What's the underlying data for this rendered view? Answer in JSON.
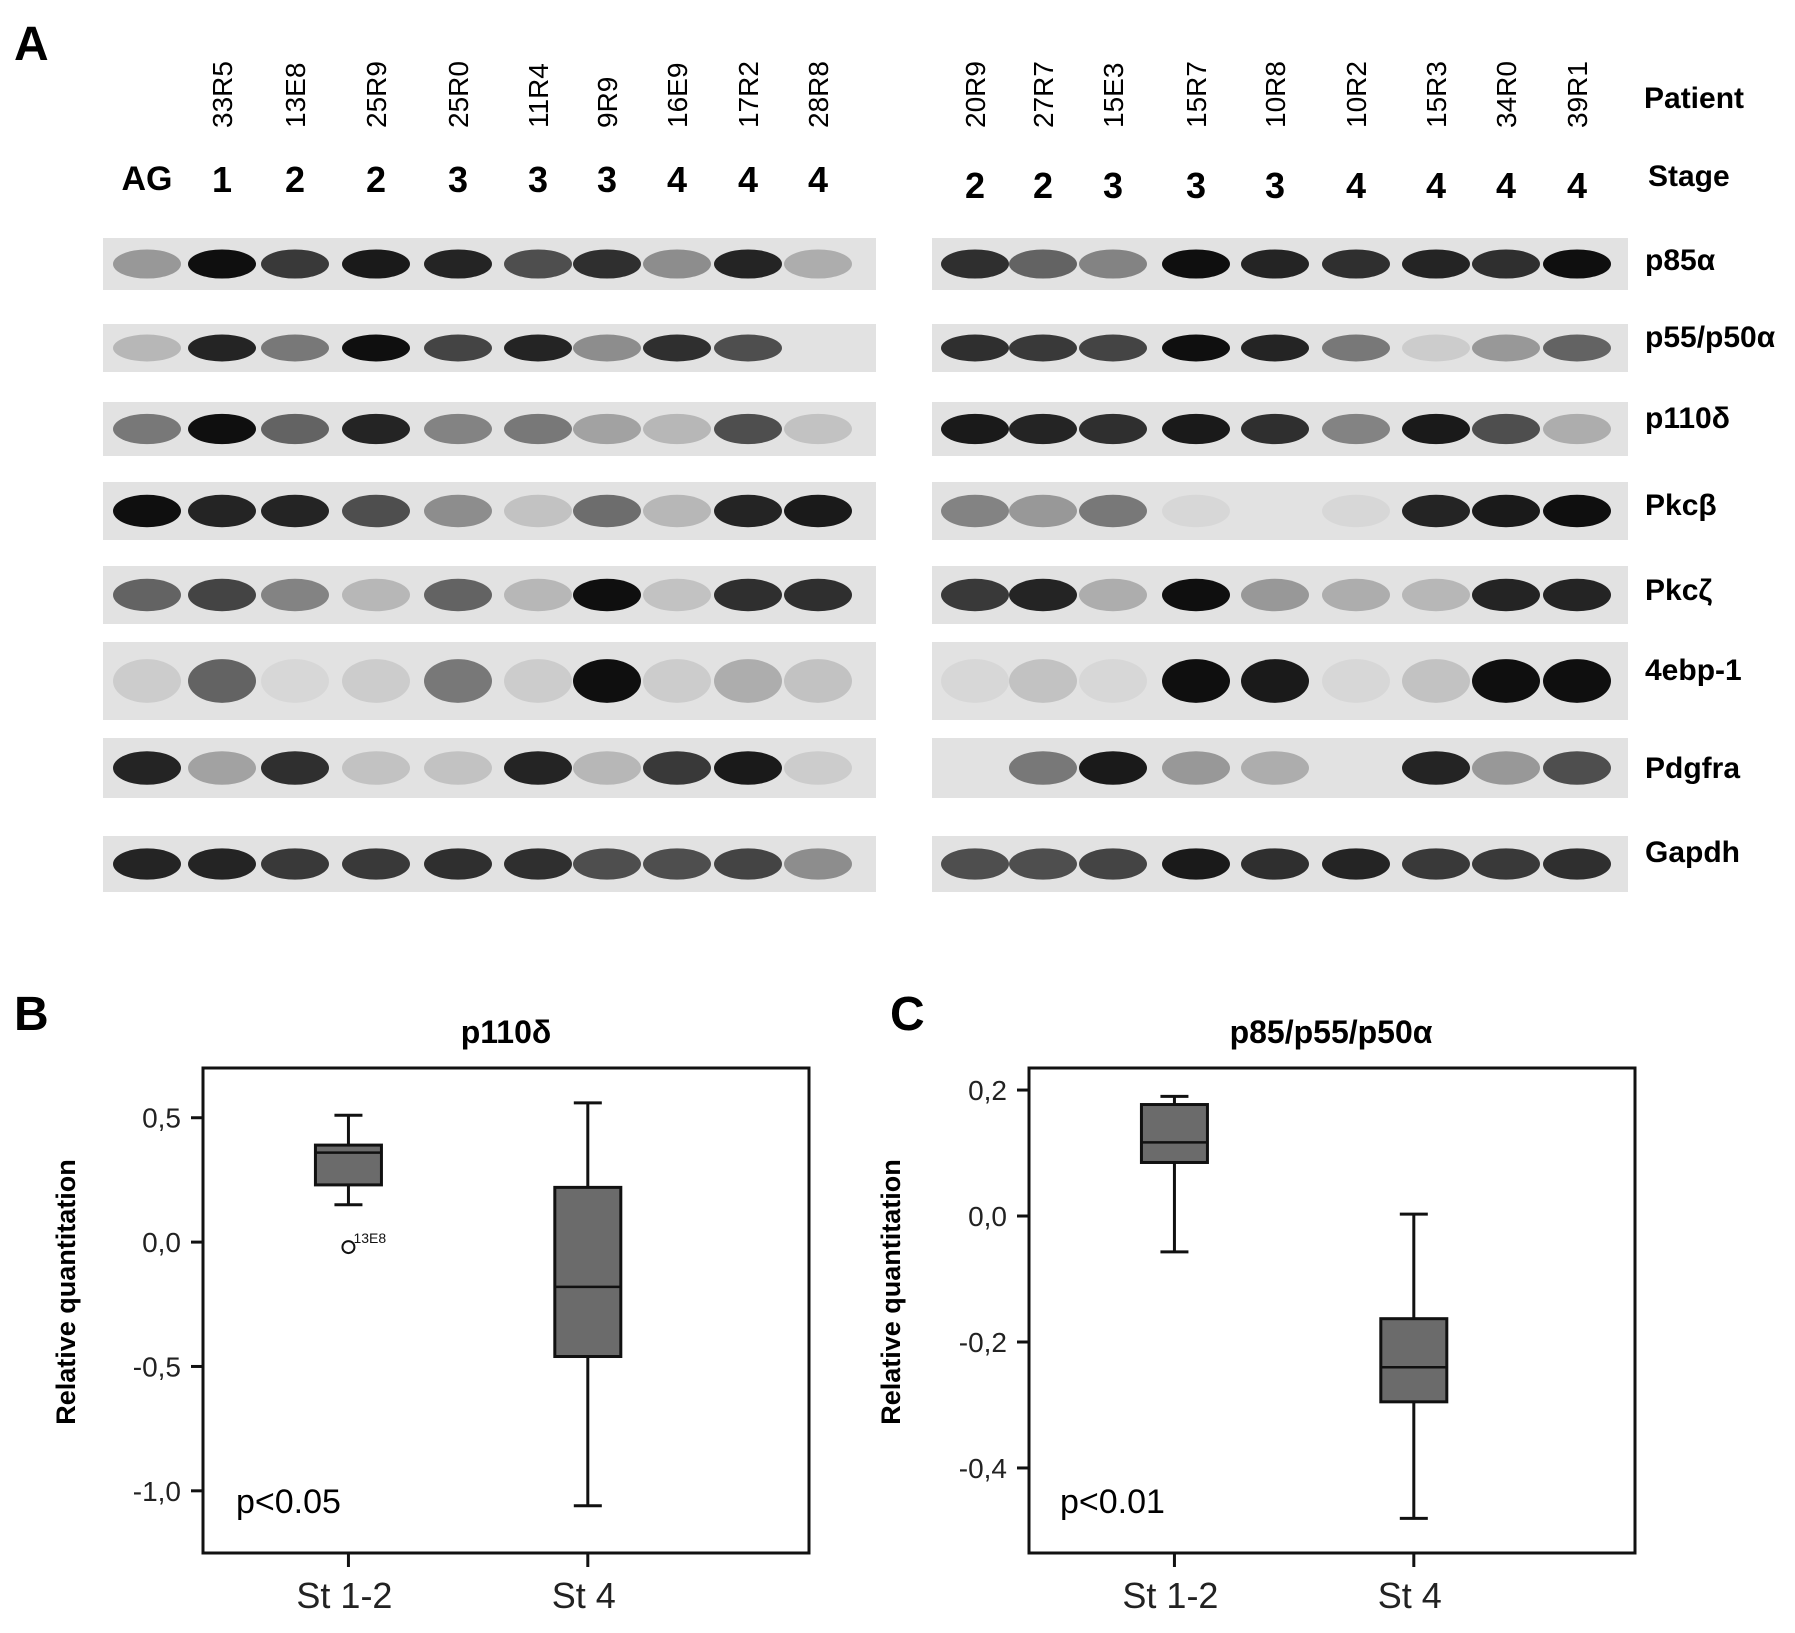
{
  "panels": {
    "a": {
      "letter": "A"
    },
    "b": {
      "letter": "B"
    },
    "c": {
      "letter": "C"
    }
  },
  "blot": {
    "row_headers": {
      "patient": "Patient",
      "stage": "Stage"
    },
    "left": {
      "control_label": "AG",
      "patients": [
        "33R5",
        "13E8",
        "25R9",
        "25R0",
        "11R4",
        "9R9",
        "16E9",
        "17R2",
        "28R8"
      ],
      "stages": [
        "1",
        "2",
        "2",
        "3",
        "3",
        "3",
        "4",
        "4",
        "4"
      ]
    },
    "right": {
      "patients": [
        "20R9",
        "27R7",
        "15E3",
        "15R7",
        "10R8",
        "10R2",
        "15R3",
        "34R0",
        "39R1"
      ],
      "stages": [
        "2",
        "2",
        "3",
        "3",
        "3",
        "4",
        "4",
        "4",
        "4"
      ]
    },
    "proteins": [
      "p85α",
      "p55/p50α",
      "p110δ",
      "Pkcβ",
      "Pkcζ",
      "4ebp-1",
      "Pdgfra",
      "Gapdh"
    ],
    "band_color": "#111111",
    "background_color": "#e2e2e2"
  },
  "chart_data": [
    {
      "type": "box",
      "panel": "B",
      "title": "p110δ",
      "xlabel": "",
      "ylabel": "Relative quantitation",
      "categories": [
        "St 1-2",
        "St 4"
      ],
      "yticks": [
        0.5,
        0.0,
        -0.5,
        -1.0
      ],
      "ytick_labels": [
        "0,5",
        "0,0",
        "-0,5",
        "-1,0"
      ],
      "ylim": [
        -1.25,
        0.7
      ],
      "boxes": [
        {
          "min": 0.15,
          "q1": 0.23,
          "median": 0.36,
          "q3": 0.39,
          "max": 0.51
        },
        {
          "min": -1.06,
          "q1": -0.46,
          "median": -0.18,
          "q3": 0.22,
          "max": 0.56
        }
      ],
      "outliers": [
        {
          "category_index": 0,
          "value": -0.02,
          "label": "13E8"
        }
      ],
      "annotation": "p<0.05",
      "box_color": "#6b6b6b"
    },
    {
      "type": "box",
      "panel": "C",
      "title": "p85/p55/p50α",
      "xlabel": "",
      "ylabel": "Relative quantitation",
      "categories": [
        "St 1-2",
        "St 4"
      ],
      "yticks": [
        0.2,
        0.0,
        -0.2,
        -0.4
      ],
      "ytick_labels": [
        "0,2",
        "0,0",
        "-0,2",
        "-0,4"
      ],
      "ylim": [
        -0.535,
        0.235
      ],
      "boxes": [
        {
          "min": -0.057,
          "q1": 0.085,
          "median": 0.117,
          "q3": 0.177,
          "max": 0.19
        },
        {
          "min": -0.48,
          "q1": -0.295,
          "median": -0.24,
          "q3": -0.163,
          "max": 0.003
        }
      ],
      "outliers": [],
      "annotation": "p<0.01",
      "box_color": "#6b6b6b"
    }
  ]
}
